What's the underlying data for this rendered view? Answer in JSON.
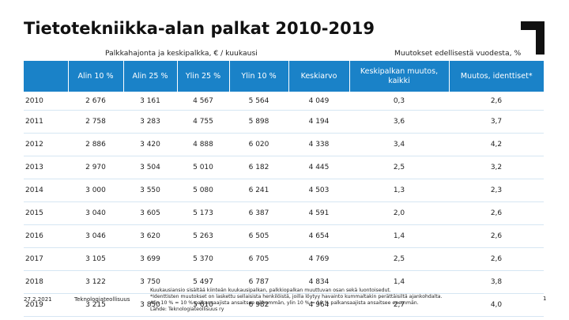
{
  "title": "Tietotekniikka-alan palkat 2010-2019",
  "subheaders": {
    "distribution": "Palkkahajonta ja keskipalkka, € / kuukausi",
    "changes": "Muutokset edellisestä vuodesta, %"
  },
  "table": {
    "headers": [
      "",
      "Alin 10 %",
      "Alin 25 %",
      "Ylin 25 %",
      "Ylin 10 %",
      "Keskiarvo",
      "Keskipalkan muutos, kaikki",
      "Muutos, identtiset*"
    ],
    "rows": [
      [
        "2010",
        "2 676",
        "3 161",
        "4 567",
        "5 564",
        "4 049",
        "0,3",
        "2,6"
      ],
      [
        "2011",
        "2 758",
        "3 283",
        "4 755",
        "5 898",
        "4 194",
        "3,6",
        "3,7"
      ],
      [
        "2012",
        "2 886",
        "3 420",
        "4 888",
        "6 020",
        "4 338",
        "3,4",
        "4,2"
      ],
      [
        "2013",
        "2 970",
        "3 504",
        "5 010",
        "6 182",
        "4 445",
        "2,5",
        "3,2"
      ],
      [
        "2014",
        "3 000",
        "3 550",
        "5 080",
        "6 241",
        "4 503",
        "1,3",
        "2,3"
      ],
      [
        "2015",
        "3 040",
        "3 605",
        "5 173",
        "6 387",
        "4 591",
        "2,0",
        "2,6"
      ],
      [
        "2016",
        "3 046",
        "3 620",
        "5 263",
        "6 505",
        "4 654",
        "1,4",
        "2,6"
      ],
      [
        "2017",
        "3 105",
        "3 699",
        "5 370",
        "6 705",
        "4 769",
        "2,5",
        "2,6"
      ],
      [
        "2018",
        "3 122",
        "3 750",
        "5 497",
        "6 787",
        "4 834",
        "1,4",
        "3,8"
      ],
      [
        "2019",
        "3 215",
        "3 850",
        "5 610",
        "6 982",
        "4 964",
        "2,7",
        "4,0"
      ]
    ]
  },
  "footer": {
    "date": "27.2.2021",
    "org": "Teknologiateollisuus",
    "notes": [
      "Kuukausiansio sisältää kiinteän kuukausipalkan, palkkiopalkan muuttuvan osan sekä luontoisedut.",
      "*Identtisten muutokset on laskettu sellaisista henkilöistä, joilla löytyy havainto kummaltakin perättäisiltä ajankohdalta.",
      "Alin 10 % = 10 % palkansaajista ansaitsee vähemmän, ylin 10 % = 10 % palkansaajista ansaitsee enemmän.",
      "Lähde: Teknologiateollisuus ry"
    ],
    "page_number": "1"
  },
  "colors": {
    "header_bg": "#1a82c8",
    "row_rule": "#d6e6f3"
  }
}
